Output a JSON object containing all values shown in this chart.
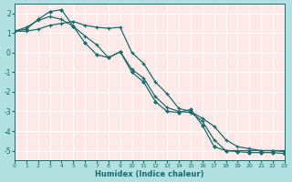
{
  "xlabel": "Humidex (Indice chaleur)",
  "outer_bg": "#b0e0e0",
  "plot_bg": "#ffe8e8",
  "grid_color": "#ffffff",
  "line_color": "#1a6b6b",
  "xlim": [
    0,
    23
  ],
  "ylim": [
    -5.5,
    2.5
  ],
  "xticks": [
    0,
    1,
    2,
    3,
    4,
    5,
    6,
    7,
    8,
    9,
    10,
    11,
    12,
    13,
    14,
    15,
    16,
    17,
    18,
    19,
    20,
    21,
    22,
    23
  ],
  "yticks": [
    -5,
    -4,
    -3,
    -2,
    -1,
    0,
    1,
    2
  ],
  "line1_x": [
    0,
    1,
    2,
    3,
    4,
    5,
    6,
    7,
    8,
    9,
    10,
    11,
    12,
    13,
    14,
    15,
    16,
    17,
    18,
    19,
    20,
    21,
    22,
    23
  ],
  "line1_y": [
    1.1,
    1.3,
    1.65,
    1.85,
    1.7,
    1.35,
    0.85,
    0.4,
    -0.25,
    0.05,
    -0.85,
    -1.3,
    -2.25,
    -2.8,
    -3.0,
    -3.05,
    -3.5,
    -4.45,
    -5.0,
    -5.0,
    -5.0,
    -5.0,
    -5.0,
    -5.0
  ],
  "line2_x": [
    0,
    1,
    2,
    3,
    4,
    5,
    6,
    7,
    8,
    9,
    10,
    11,
    12,
    13,
    14,
    15,
    16,
    17,
    18,
    19,
    20,
    21,
    22,
    23
  ],
  "line2_y": [
    1.1,
    1.2,
    1.7,
    2.1,
    2.2,
    1.35,
    0.5,
    -0.1,
    -0.25,
    0.05,
    -1.0,
    -1.5,
    -2.5,
    -3.0,
    -3.05,
    -2.9,
    -3.7,
    -4.8,
    -5.0,
    -5.05,
    -5.1,
    -5.1,
    -5.1,
    -5.15
  ],
  "line3_x": [
    0,
    1,
    2,
    3,
    4,
    5,
    6,
    7,
    8,
    9,
    10,
    11,
    12,
    13,
    14,
    15,
    16,
    17,
    18,
    19,
    20,
    21,
    22,
    23
  ],
  "line3_y": [
    1.1,
    1.1,
    1.2,
    1.4,
    1.5,
    1.6,
    1.4,
    1.3,
    1.25,
    1.3,
    0.0,
    -0.55,
    -1.5,
    -2.1,
    -2.85,
    -3.0,
    -3.35,
    -3.75,
    -4.45,
    -4.8,
    -4.9,
    -5.0,
    -5.0,
    -5.05
  ]
}
